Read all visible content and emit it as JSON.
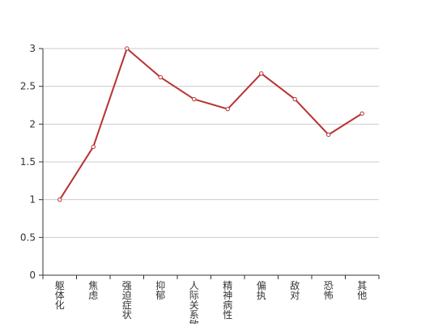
{
  "chart_data": {
    "type": "line",
    "categories": [
      "躯体化",
      "焦虑",
      "强迫症状",
      "抑郁",
      "人际关系敏感",
      "精神病性",
      "偏执",
      "敌对",
      "恐怖",
      "其他"
    ],
    "series": [
      {
        "values": [
          1.0,
          1.7,
          3.0,
          2.62,
          2.33,
          2.2,
          2.67,
          2.33,
          1.86,
          2.14
        ]
      }
    ],
    "yticks": [
      "0",
      "0.5",
      "1",
      "1.5",
      "2",
      "2.5",
      "3"
    ],
    "ylim": [
      0,
      3
    ],
    "grid": true,
    "colors": {
      "line": "#b83232",
      "grid": "#cccccc",
      "axis": "#333333",
      "label": "#333333"
    }
  }
}
